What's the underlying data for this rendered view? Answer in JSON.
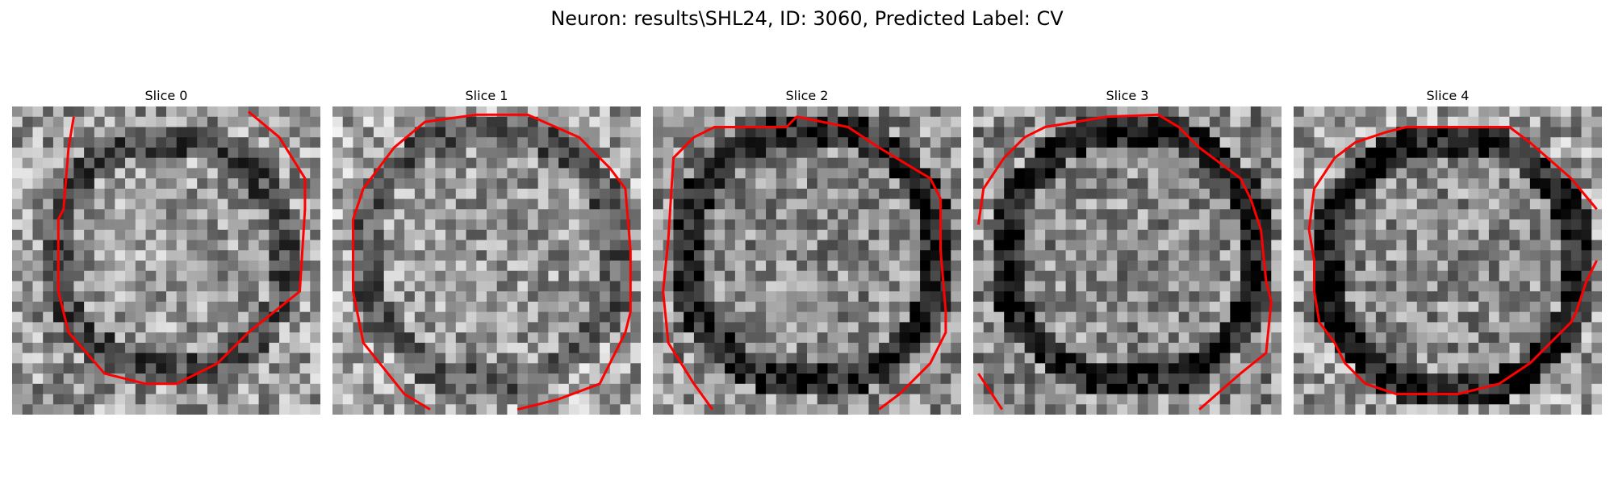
{
  "figure": {
    "title": "Neuron: results\\SHL24, ID: 3060, Predicted Label: CV"
  },
  "panels": [
    {
      "title": "Slice 0",
      "contour_color": "#ff0000",
      "colormap": "gray"
    },
    {
      "title": "Slice 1",
      "contour_color": "#ff0000",
      "colormap": "gray"
    },
    {
      "title": "Slice 2",
      "contour_color": "#ff0000",
      "colormap": "gray"
    },
    {
      "title": "Slice 3",
      "contour_color": "#ff0000",
      "colormap": "gray"
    },
    {
      "title": "Slice 4",
      "contour_color": "#ff0000",
      "colormap": "gray"
    }
  ]
}
